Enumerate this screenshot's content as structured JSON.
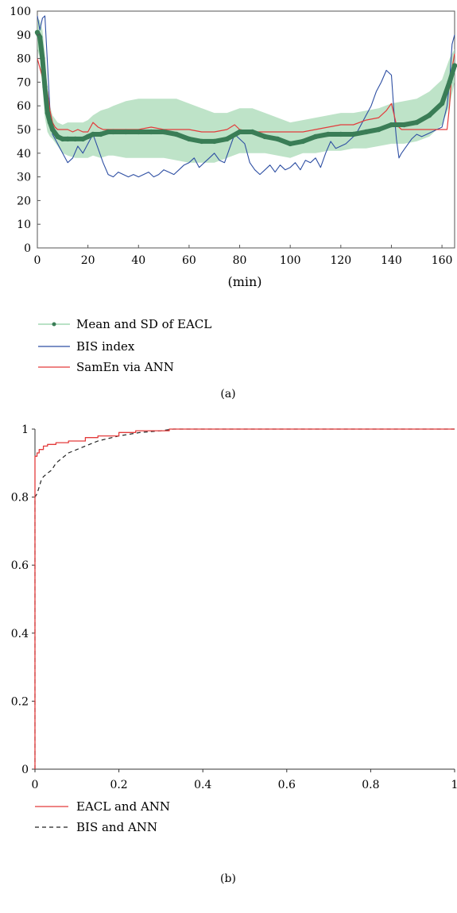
{
  "chart_data": [
    {
      "panel_label": "(a)",
      "type": "line",
      "xlabel": "(min)",
      "ylabel": "",
      "xlim": [
        0,
        165
      ],
      "ylim": [
        0,
        100
      ],
      "x_ticks": [
        0,
        20,
        40,
        60,
        80,
        100,
        120,
        140,
        160
      ],
      "y_ticks": [
        0,
        10,
        20,
        30,
        40,
        50,
        60,
        70,
        80,
        90,
        100
      ],
      "grid": false,
      "legend_position": "below",
      "series": [
        {
          "name": "Mean and SD of EACL",
          "color": "#3a7d56",
          "band_color": "#a8d9b6",
          "x": [
            0,
            1,
            2,
            3,
            4,
            5,
            6,
            8,
            10,
            12,
            15,
            18,
            20,
            22,
            25,
            28,
            30,
            35,
            40,
            45,
            50,
            55,
            60,
            65,
            70,
            75,
            80,
            85,
            90,
            95,
            100,
            105,
            110,
            115,
            120,
            125,
            130,
            135,
            140,
            145,
            150,
            155,
            160,
            163,
            165
          ],
          "mean": [
            91,
            89,
            80,
            68,
            57,
            53,
            50,
            47,
            46,
            46,
            46,
            46,
            47,
            48,
            48,
            49,
            49,
            49,
            49,
            49,
            49,
            48,
            46,
            45,
            45,
            46,
            49,
            49,
            47,
            46,
            44,
            45,
            47,
            48,
            48,
            48,
            49,
            50,
            52,
            52,
            53,
            56,
            61,
            70,
            77
          ],
          "sd_low": [
            84,
            80,
            68,
            55,
            49,
            47,
            46,
            43,
            40,
            39,
            38,
            38,
            38,
            39,
            38,
            39,
            39,
            38,
            38,
            38,
            38,
            37,
            36,
            36,
            36,
            38,
            40,
            40,
            40,
            39,
            38,
            40,
            40,
            41,
            41,
            42,
            42,
            43,
            44,
            44,
            45,
            47,
            52,
            60,
            70
          ],
          "sd_high": [
            97,
            96,
            92,
            82,
            66,
            60,
            56,
            53,
            52,
            53,
            53,
            53,
            54,
            56,
            58,
            59,
            60,
            62,
            63,
            63,
            63,
            63,
            61,
            59,
            57,
            57,
            59,
            59,
            57,
            55,
            53,
            54,
            55,
            56,
            57,
            57,
            58,
            59,
            61,
            62,
            63,
            66,
            71,
            80,
            84
          ]
        },
        {
          "name": "BIS index",
          "color": "#2e4fa3",
          "x": [
            0,
            1,
            2,
            3,
            4,
            5,
            6,
            7,
            8,
            9,
            10,
            12,
            14,
            16,
            18,
            20,
            22,
            24,
            26,
            28,
            30,
            32,
            34,
            36,
            38,
            40,
            42,
            44,
            46,
            48,
            50,
            52,
            54,
            56,
            58,
            60,
            62,
            64,
            66,
            68,
            70,
            72,
            74,
            76,
            78,
            80,
            82,
            84,
            86,
            88,
            90,
            92,
            94,
            96,
            98,
            100,
            102,
            104,
            106,
            108,
            110,
            112,
            114,
            116,
            118,
            120,
            122,
            124,
            126,
            128,
            130,
            132,
            134,
            136,
            138,
            140,
            141,
            142,
            143,
            144,
            146,
            148,
            150,
            152,
            154,
            156,
            158,
            160,
            162,
            163,
            164,
            165
          ],
          "values": [
            98,
            92,
            97,
            98,
            78,
            58,
            48,
            46,
            44,
            42,
            40,
            36,
            38,
            43,
            40,
            44,
            48,
            42,
            36,
            31,
            30,
            32,
            31,
            30,
            31,
            30,
            31,
            32,
            30,
            31,
            33,
            32,
            31,
            33,
            35,
            36,
            38,
            34,
            36,
            38,
            40,
            37,
            36,
            42,
            48,
            46,
            44,
            36,
            33,
            31,
            33,
            35,
            32,
            35,
            33,
            34,
            36,
            33,
            37,
            36,
            38,
            34,
            40,
            45,
            42,
            43,
            44,
            46,
            48,
            52,
            56,
            60,
            66,
            70,
            75,
            73,
            58,
            46,
            38,
            40,
            43,
            46,
            48,
            47,
            48,
            49,
            50,
            51,
            60,
            70,
            86,
            90
          ]
        },
        {
          "name": "SamEn via ANN",
          "color": "#e33b3b",
          "x": [
            0,
            1,
            2,
            3,
            4,
            5,
            6,
            7,
            8,
            10,
            12,
            14,
            16,
            18,
            20,
            22,
            24,
            26,
            28,
            30,
            35,
            40,
            45,
            50,
            55,
            60,
            65,
            70,
            75,
            78,
            80,
            85,
            90,
            95,
            100,
            105,
            110,
            115,
            120,
            125,
            130,
            135,
            138,
            140,
            142,
            144,
            146,
            150,
            155,
            160,
            162,
            163,
            164,
            165
          ],
          "values": [
            80,
            76,
            72,
            70,
            66,
            58,
            53,
            51,
            50,
            50,
            50,
            49,
            50,
            49,
            49,
            53,
            51,
            50,
            50,
            50,
            50,
            50,
            51,
            50,
            50,
            50,
            49,
            49,
            50,
            52,
            50,
            49,
            49,
            49,
            49,
            49,
            50,
            51,
            52,
            52,
            54,
            55,
            58,
            61,
            52,
            50,
            50,
            50,
            50,
            50,
            50,
            60,
            76,
            82
          ]
        }
      ]
    },
    {
      "panel_label": "(b)",
      "type": "line",
      "xlabel": "",
      "ylabel": "",
      "xlim": [
        0,
        1
      ],
      "ylim": [
        0,
        1
      ],
      "x_ticks": [
        0,
        0.2,
        0.4,
        0.6,
        0.8,
        1
      ],
      "y_ticks": [
        0,
        0.2,
        0.4,
        0.6,
        0.8,
        1
      ],
      "grid": false,
      "legend_position": "below",
      "series": [
        {
          "name": "EACL and ANN",
          "color": "#e33b3b",
          "dash": "solid",
          "x": [
            0,
            0,
            0.005,
            0.005,
            0.01,
            0.01,
            0.02,
            0.02,
            0.03,
            0.03,
            0.05,
            0.05,
            0.08,
            0.08,
            0.12,
            0.12,
            0.15,
            0.15,
            0.2,
            0.2,
            0.24,
            0.24,
            0.32,
            0.32,
            1
          ],
          "y": [
            0,
            0.92,
            0.92,
            0.93,
            0.93,
            0.94,
            0.94,
            0.95,
            0.95,
            0.955,
            0.955,
            0.96,
            0.96,
            0.965,
            0.965,
            0.975,
            0.975,
            0.98,
            0.98,
            0.99,
            0.99,
            0.995,
            0.995,
            1,
            1
          ]
        },
        {
          "name": "BIS and ANN",
          "color": "#222222",
          "dash": "dashed",
          "x": [
            0,
            0,
            0.005,
            0.01,
            0.015,
            0.02,
            0.03,
            0.04,
            0.05,
            0.06,
            0.07,
            0.08,
            0.1,
            0.12,
            0.15,
            0.2,
            0.25,
            0.3,
            0.33,
            1
          ],
          "y": [
            0,
            0.8,
            0.81,
            0.83,
            0.85,
            0.86,
            0.87,
            0.88,
            0.9,
            0.91,
            0.92,
            0.93,
            0.94,
            0.95,
            0.965,
            0.98,
            0.99,
            0.995,
            1,
            1
          ]
        }
      ]
    }
  ]
}
